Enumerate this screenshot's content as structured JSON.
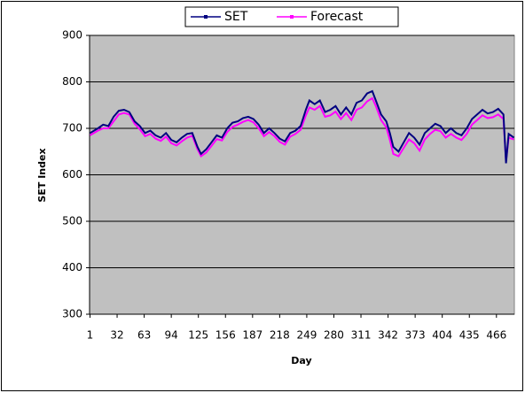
{
  "chart_data": {
    "type": "line",
    "xlabel": "Day",
    "ylabel": "SET Index",
    "x": [
      1,
      10,
      16,
      22,
      28,
      34,
      40,
      46,
      52,
      58,
      64,
      70,
      76,
      82,
      88,
      94,
      100,
      106,
      112,
      118,
      124,
      128,
      134,
      140,
      146,
      152,
      158,
      164,
      170,
      176,
      182,
      188,
      194,
      200,
      206,
      212,
      218,
      224,
      230,
      236,
      242,
      248,
      252,
      258,
      264,
      270,
      276,
      282,
      288,
      294,
      300,
      306,
      312,
      318,
      324,
      328,
      334,
      340,
      344,
      348,
      354,
      360,
      366,
      372,
      378,
      384,
      390,
      396,
      402,
      408,
      414,
      420,
      426,
      432,
      438,
      444,
      450,
      456,
      462,
      468,
      474,
      477,
      480,
      486
    ],
    "series": [
      {
        "name": "SET",
        "color": "#000080",
        "values": [
          690,
          700,
          708,
          705,
          725,
          738,
          740,
          735,
          715,
          705,
          690,
          695,
          685,
          680,
          690,
          675,
          670,
          680,
          688,
          690,
          660,
          645,
          655,
          670,
          685,
          680,
          700,
          712,
          715,
          722,
          725,
          720,
          708,
          690,
          700,
          690,
          678,
          672,
          690,
          695,
          705,
          740,
          760,
          752,
          760,
          735,
          740,
          748,
          730,
          745,
          730,
          755,
          760,
          775,
          780,
          760,
          730,
          715,
          690,
          660,
          650,
          670,
          690,
          680,
          665,
          690,
          700,
          710,
          705,
          690,
          700,
          690,
          685,
          700,
          720,
          730,
          740,
          732,
          735,
          742,
          730,
          625,
          688,
          680
        ]
      },
      {
        "name": "Forecast",
        "color": "#ff00ff",
        "values": [
          685,
          695,
          700,
          700,
          715,
          730,
          733,
          730,
          710,
          698,
          683,
          688,
          678,
          673,
          682,
          668,
          663,
          672,
          680,
          684,
          655,
          640,
          648,
          662,
          677,
          674,
          692,
          703,
          708,
          714,
          718,
          713,
          700,
          683,
          692,
          683,
          671,
          665,
          682,
          688,
          697,
          728,
          745,
          740,
          748,
          725,
          728,
          736,
          720,
          733,
          718,
          740,
          745,
          758,
          765,
          748,
          718,
          702,
          675,
          645,
          640,
          658,
          676,
          668,
          652,
          676,
          688,
          697,
          694,
          680,
          688,
          680,
          675,
          688,
          708,
          718,
          728,
          722,
          724,
          730,
          720,
          630,
          680,
          676
        ]
      }
    ],
    "xlim": [
      0.5,
      486.5
    ],
    "xticks": [
      1,
      32,
      63,
      94,
      125,
      156,
      187,
      218,
      249,
      280,
      311,
      342,
      373,
      404,
      435,
      466
    ],
    "ylim": [
      300,
      900
    ],
    "yticks": [
      300,
      400,
      500,
      600,
      700,
      800,
      900
    ],
    "grid": true,
    "legend": "top"
  }
}
